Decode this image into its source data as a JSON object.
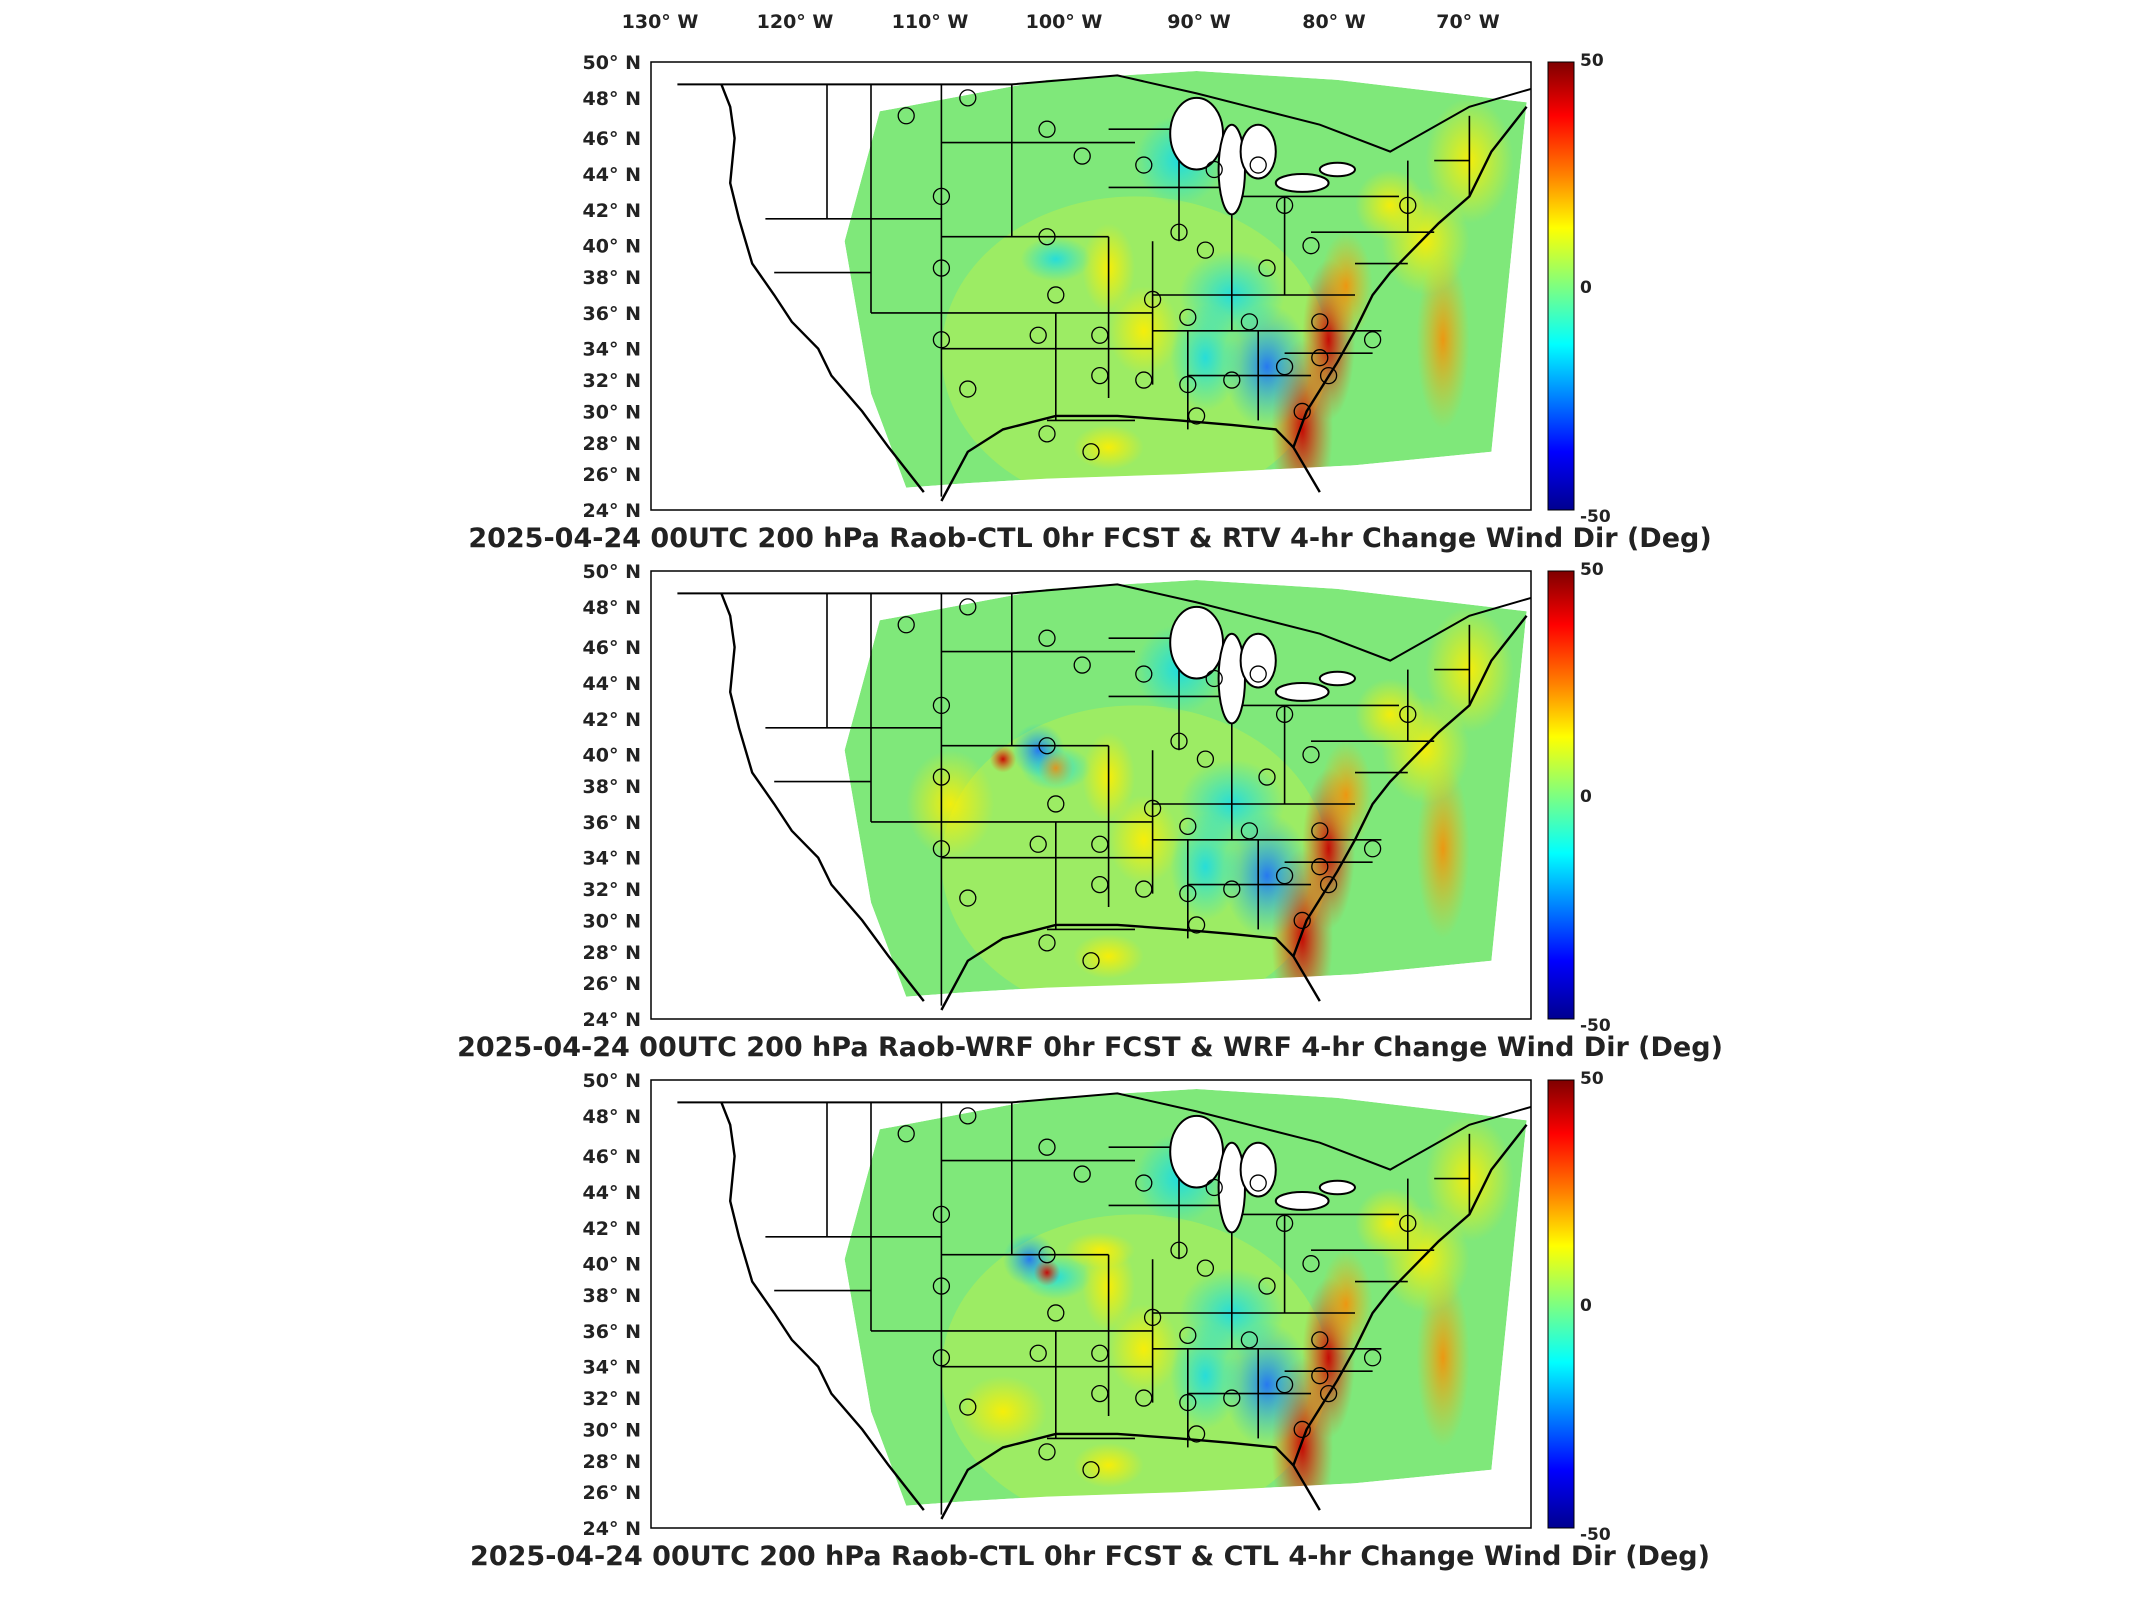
{
  "figure": {
    "lon_labels": [
      "130° W",
      "120° W",
      "110° W",
      "100° W",
      "90° W",
      "80° W",
      "70° W"
    ],
    "lat_labels": [
      "50° N",
      "48° N",
      "46° N",
      "44° N",
      "42° N",
      "40° N",
      "38° N",
      "36° N",
      "34° N",
      "32° N",
      "30° N",
      "28° N",
      "26° N",
      "24° N"
    ],
    "colorbar": {
      "max_label": "50",
      "mid_label": "0",
      "min_label": "-50",
      "colors": [
        "#00008f",
        "#0000ff",
        "#00ffff",
        "#7fff7f",
        "#ffff00",
        "#ff7f00",
        "#ff0000",
        "#7f0000"
      ]
    },
    "land_color": "#ffffff",
    "boundary_color": "#000000",
    "station_marker": "circle-outline"
  },
  "panels": [
    {
      "title": "2025-04-24 00UTC 200 hPa Raob-CTL 0hr FCST & RTV 4-hr Change Wind Dir (Deg)"
    },
    {
      "title": "2025-04-24 00UTC 200 hPa Raob-WRF 0hr FCST & WRF 4-hr Change Wind Dir (Deg)"
    },
    {
      "title": "2025-04-24 00UTC 200 hPa Raob-CTL 0hr FCST & CTL 4-hr Change Wind Dir (Deg)"
    }
  ]
}
